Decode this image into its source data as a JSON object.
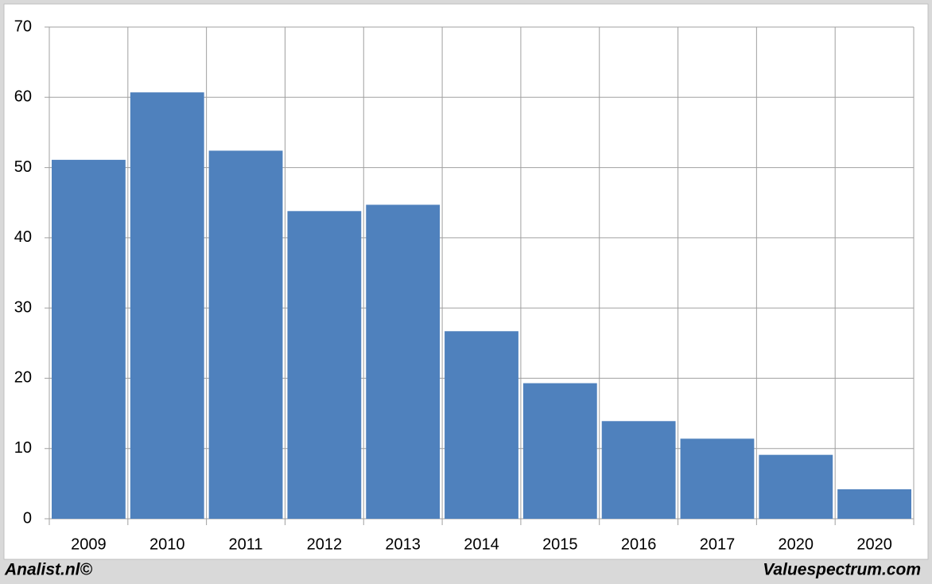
{
  "chart_data": {
    "type": "bar",
    "categories": [
      "2009",
      "2010",
      "2011",
      "2012",
      "2013",
      "2014",
      "2015",
      "2016",
      "2017",
      "2020",
      "2020"
    ],
    "values": [
      51.1,
      60.7,
      52.4,
      43.8,
      44.7,
      26.7,
      19.3,
      13.9,
      11.4,
      9.1,
      4.2
    ],
    "color": "#4f81bd",
    "ylim": [
      0,
      70
    ],
    "yticks": [
      0,
      10,
      20,
      30,
      40,
      50,
      60,
      70
    ],
    "grid": true,
    "credits": [
      "Analist.nl©",
      "Valuespectrum.com"
    ]
  }
}
